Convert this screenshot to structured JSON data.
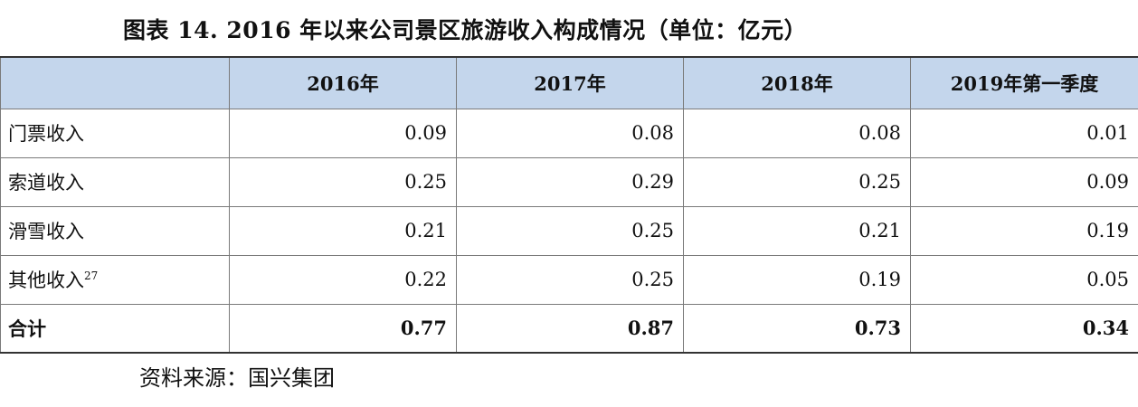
{
  "title": "图表 14. 2016 年以来公司景区旅游收入构成情况（单位：亿元）",
  "table": {
    "headers": [
      "",
      "2016年",
      "2017年",
      "2018年",
      "2019年第一季度"
    ],
    "rows": [
      {
        "label": "门票收入",
        "note": "",
        "values": [
          "0.09",
          "0.08",
          "0.08",
          "0.01"
        ]
      },
      {
        "label": "索道收入",
        "note": "",
        "values": [
          "0.25",
          "0.29",
          "0.25",
          "0.09"
        ]
      },
      {
        "label": "滑雪收入",
        "note": "",
        "values": [
          "0.21",
          "0.25",
          "0.21",
          "0.19"
        ]
      },
      {
        "label": "其他收入",
        "note": "27",
        "values": [
          "0.22",
          "0.25",
          "0.19",
          "0.05"
        ]
      }
    ],
    "total": {
      "label": "合计",
      "values": [
        "0.77",
        "0.87",
        "0.73",
        "0.34"
      ]
    }
  },
  "source": "资料来源：国兴集团"
}
